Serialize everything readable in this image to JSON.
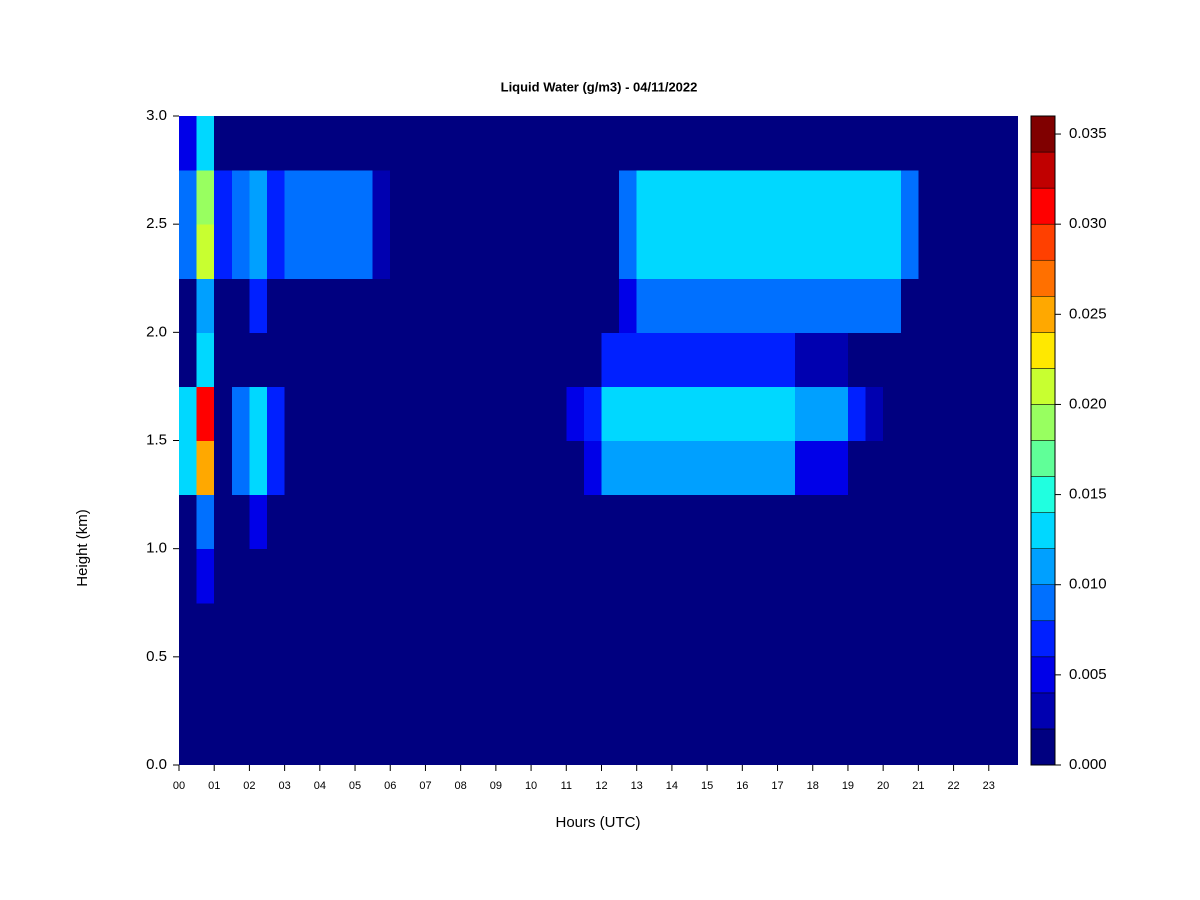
{
  "chart_data": {
    "type": "heatmap",
    "title": "Liquid Water (g/m3) - 04/11/2022",
    "x_label": "Hours (UTC)",
    "y_label": "Height (km)",
    "xlim": [
      0,
      23.83
    ],
    "xticks": [
      {
        "value": 0,
        "label": "00"
      },
      {
        "value": 1,
        "label": "01"
      },
      {
        "value": 2,
        "label": "02"
      },
      {
        "value": 3,
        "label": "03"
      },
      {
        "value": 4,
        "label": "04"
      },
      {
        "value": 5,
        "label": "05"
      },
      {
        "value": 6,
        "label": "06"
      },
      {
        "value": 7,
        "label": "07"
      },
      {
        "value": 8,
        "label": "08"
      },
      {
        "value": 9,
        "label": "09"
      },
      10,
      11,
      12,
      13,
      14,
      15,
      16,
      17,
      18,
      19,
      20,
      21,
      22,
      23
    ],
    "ylim": [
      0,
      3
    ],
    "yticks": [
      {
        "value": 0,
        "label": "0.0"
      },
      0.5,
      {
        "value": 1,
        "label": "1.0"
      },
      1.5,
      {
        "value": 2,
        "label": "2.0"
      },
      2.5,
      {
        "value": 3,
        "label": "3.0"
      }
    ],
    "zlim": [
      0,
      0.036
    ],
    "zticks": [
      {
        "value": 0,
        "label": "0.000"
      },
      0.005,
      {
        "value": 0.01,
        "label": "0.010"
      },
      0.015,
      {
        "value": 0.02,
        "label": "0.020"
      },
      0.025,
      {
        "value": 0.03,
        "label": "0.030"
      },
      0.035
    ],
    "colors": [
      "#000080",
      "#0000b0",
      "#0000e8",
      "#0020ff",
      "#0070ff",
      "#00a0ff",
      "#00d8ff",
      "#20ffe0",
      "#60ff98",
      "#98ff60",
      "#c8ff30",
      "#ffe800",
      "#ffa800",
      "#ff7000",
      "#ff4000",
      "#ff0000",
      "#c00000",
      "#800000"
    ],
    "xbins": [
      0,
      0.5,
      1,
      1.5,
      2,
      2.5,
      3,
      3.5,
      4,
      4.5,
      5,
      5.5,
      6,
      6.5,
      7,
      7.5,
      8,
      8.5,
      9,
      9.5,
      10,
      10.5,
      11,
      11.5,
      12,
      12.5,
      13,
      13.5,
      14,
      14.5,
      15,
      15.5,
      16,
      16.5,
      17,
      17.5,
      18,
      18.5,
      19,
      19.5,
      20,
      20.5,
      21,
      21.5,
      22,
      22.5,
      23,
      23.5,
      24
    ],
    "ybins": [
      0,
      0.25,
      0.5,
      0.75,
      1,
      1.25,
      1.5,
      1.75,
      2,
      2.25,
      2.5,
      2.75,
      3
    ],
    "z": [
      [
        0,
        0,
        0,
        0,
        0,
        0,
        0,
        0,
        0,
        0,
        0,
        0,
        0,
        0,
        0,
        0,
        0,
        0,
        0,
        0,
        0,
        0,
        0,
        0,
        0,
        0,
        0,
        0,
        0,
        0,
        0,
        0,
        0,
        0,
        0,
        0,
        0,
        0,
        0,
        0,
        0,
        0,
        0,
        0,
        0,
        0,
        0,
        0
      ],
      [
        0,
        0,
        0,
        0,
        0,
        0,
        0,
        0,
        0,
        0,
        0,
        0,
        0,
        0,
        0,
        0,
        0,
        0,
        0,
        0,
        0,
        0,
        0,
        0,
        0,
        0,
        0,
        0,
        0,
        0,
        0,
        0,
        0,
        0,
        0,
        0,
        0,
        0,
        0,
        0,
        0,
        0,
        0,
        0,
        0,
        0,
        0,
        0
      ],
      [
        0,
        0,
        0,
        0,
        0,
        0,
        0,
        0,
        0,
        0,
        0,
        0,
        0,
        0,
        0,
        0,
        0,
        0,
        0,
        0,
        0,
        0,
        0,
        0,
        0,
        0,
        0,
        0,
        0,
        0,
        0,
        0,
        0,
        0,
        0,
        0,
        0,
        0,
        0,
        0,
        0,
        0,
        0,
        0,
        0,
        0,
        0,
        0
      ],
      [
        0,
        0.004,
        0,
        0,
        0,
        0,
        0,
        0,
        0,
        0,
        0,
        0,
        0,
        0,
        0,
        0,
        0,
        0,
        0,
        0,
        0,
        0,
        0,
        0,
        0,
        0,
        0,
        0,
        0,
        0,
        0,
        0,
        0,
        0,
        0,
        0,
        0,
        0,
        0,
        0,
        0,
        0,
        0,
        0,
        0,
        0,
        0,
        0
      ],
      [
        0,
        0.008,
        0,
        0,
        0.004,
        0,
        0,
        0,
        0,
        0,
        0,
        0,
        0,
        0,
        0,
        0,
        0,
        0,
        0,
        0,
        0,
        0,
        0,
        0,
        0,
        0,
        0,
        0,
        0,
        0,
        0,
        0,
        0,
        0,
        0,
        0,
        0,
        0,
        0,
        0,
        0,
        0,
        0,
        0,
        0,
        0,
        0,
        0
      ],
      [
        0.012,
        0.024,
        0,
        0.008,
        0.012,
        0.006,
        0,
        0,
        0,
        0,
        0,
        0,
        0,
        0,
        0,
        0,
        0,
        0,
        0,
        0,
        0,
        0,
        0,
        0.004,
        0.01,
        0.01,
        0.01,
        0.01,
        0.01,
        0.01,
        0.01,
        0.01,
        0.01,
        0.01,
        0.01,
        0.004,
        0.004,
        0.004,
        0,
        0,
        0,
        0,
        0,
        0,
        0,
        0,
        0,
        0
      ],
      [
        0.012,
        0.03,
        0,
        0.008,
        0.012,
        0.006,
        0,
        0,
        0,
        0,
        0,
        0,
        0,
        0,
        0,
        0,
        0,
        0,
        0,
        0,
        0,
        0,
        0.004,
        0.007,
        0.012,
        0.012,
        0.012,
        0.012,
        0.012,
        0.012,
        0.012,
        0.012,
        0.012,
        0.012,
        0.012,
        0.01,
        0.01,
        0.01,
        0.007,
        0.003,
        0,
        0,
        0,
        0,
        0,
        0,
        0,
        0
      ],
      [
        0,
        0.012,
        0,
        0,
        0,
        0,
        0,
        0,
        0,
        0,
        0,
        0,
        0,
        0,
        0,
        0,
        0,
        0,
        0,
        0,
        0,
        0,
        0,
        0,
        0.006,
        0.006,
        0.006,
        0.006,
        0.006,
        0.006,
        0.006,
        0.006,
        0.006,
        0.006,
        0.006,
        0.002,
        0.002,
        0.002,
        0,
        0,
        0,
        0,
        0,
        0,
        0,
        0,
        0,
        0
      ],
      [
        0,
        0.01,
        0,
        0,
        0.006,
        0,
        0,
        0,
        0,
        0,
        0,
        0,
        0,
        0,
        0,
        0,
        0,
        0,
        0,
        0,
        0,
        0,
        0,
        0,
        0,
        0.004,
        0.008,
        0.008,
        0.008,
        0.008,
        0.008,
        0.008,
        0.008,
        0.008,
        0.008,
        0.008,
        0.008,
        0.008,
        0.008,
        0.008,
        0.008,
        0,
        0,
        0,
        0,
        0,
        0,
        0
      ],
      [
        0.008,
        0.02,
        0.007,
        0.008,
        0.01,
        0.007,
        0.008,
        0.008,
        0.008,
        0.008,
        0.008,
        0.002,
        0,
        0,
        0,
        0,
        0,
        0,
        0,
        0,
        0,
        0,
        0,
        0,
        0,
        0.008,
        0.012,
        0.012,
        0.012,
        0.012,
        0.012,
        0.012,
        0.012,
        0.012,
        0.012,
        0.012,
        0.012,
        0.012,
        0.012,
        0.012,
        0.012,
        0.008,
        0,
        0,
        0,
        0,
        0,
        0
      ],
      [
        0.008,
        0.018,
        0.007,
        0.008,
        0.01,
        0.007,
        0.008,
        0.008,
        0.008,
        0.008,
        0.008,
        0.002,
        0,
        0,
        0,
        0,
        0,
        0,
        0,
        0,
        0,
        0,
        0,
        0,
        0,
        0.008,
        0.012,
        0.012,
        0.012,
        0.012,
        0.012,
        0.012,
        0.012,
        0.012,
        0.012,
        0.012,
        0.012,
        0.012,
        0.012,
        0.012,
        0.012,
        0.008,
        0,
        0,
        0,
        0,
        0,
        0
      ],
      [
        0.004,
        0.012,
        0,
        0,
        0,
        0,
        0,
        0,
        0,
        0,
        0,
        0,
        0,
        0,
        0,
        0,
        0,
        0,
        0,
        0,
        0,
        0,
        0,
        0,
        0,
        0,
        0,
        0,
        0,
        0,
        0,
        0,
        0,
        0,
        0,
        0,
        0,
        0,
        0,
        0,
        0,
        0,
        0,
        0,
        0,
        0,
        0,
        0
      ]
    ]
  }
}
